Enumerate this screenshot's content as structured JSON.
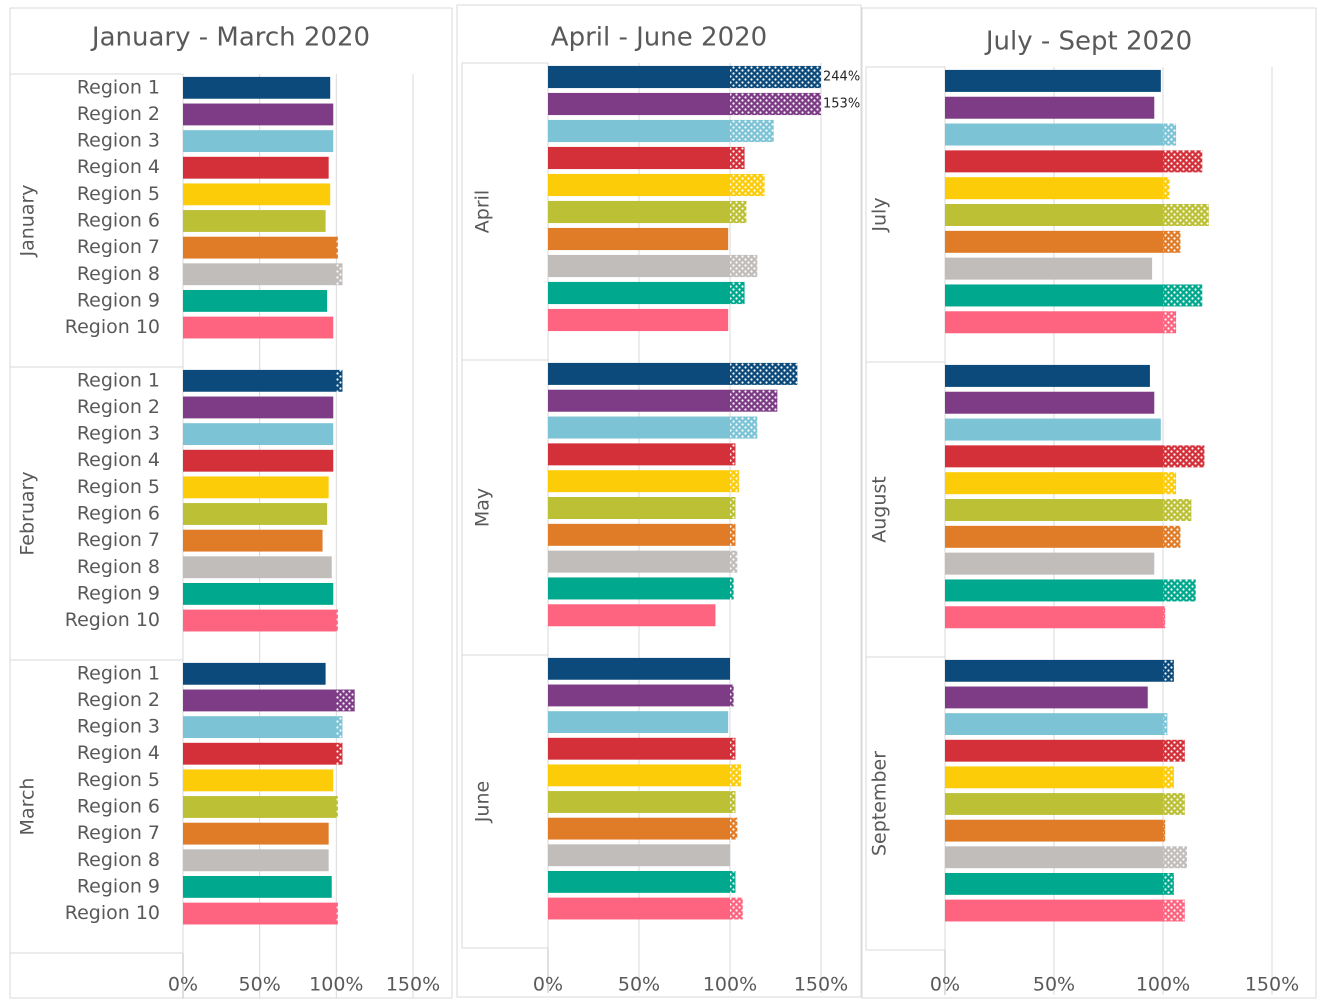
{
  "chart_data": [
    {
      "type": "bar",
      "title": "January - March 2020",
      "categories": [
        "Region 1",
        "Region 2",
        "Region 3",
        "Region 4",
        "Region 5",
        "Region 6",
        "Region 7",
        "Region 8",
        "Region 9",
        "Region 10"
      ],
      "colors": [
        "#0b4a7a",
        "#7d3c85",
        "#7cc4d5",
        "#d3303a",
        "#fdcc09",
        "#bcc034",
        "#e07b28",
        "#c0bdbb",
        "#00a88d",
        "#fe6480"
      ],
      "groups": [
        {
          "name": "January",
          "values": [
            96,
            98,
            98,
            95,
            96,
            93,
            101,
            104,
            94,
            98
          ]
        },
        {
          "name": "February",
          "values": [
            104,
            98,
            98,
            98,
            95,
            94,
            91,
            97,
            98,
            101
          ]
        },
        {
          "name": "March",
          "values": [
            93,
            112,
            104,
            104,
            98,
            101,
            95,
            95,
            97,
            101
          ]
        }
      ],
      "xlim": [
        0,
        150
      ],
      "xticks": [
        {
          "value": 0,
          "label": "0%"
        },
        {
          "value": 50,
          "label": "50%"
        },
        {
          "value": 100,
          "label": "100%"
        },
        {
          "value": 150,
          "label": "150%"
        }
      ],
      "grid": true
    },
    {
      "type": "bar",
      "title": "April - June 2020",
      "colors": [
        "#0b4a7a",
        "#7d3c85",
        "#7cc4d5",
        "#d3303a",
        "#fdcc09",
        "#bcc034",
        "#e07b28",
        "#c0bdbb",
        "#00a88d",
        "#fe6480"
      ],
      "groups": [
        {
          "name": "April",
          "values": [
            244,
            153,
            124,
            108,
            119,
            109,
            99,
            115,
            108,
            99
          ],
          "value_labels": [
            "244%",
            "153%",
            null,
            null,
            null,
            null,
            null,
            null,
            null,
            null
          ]
        },
        {
          "name": "May",
          "values": [
            137,
            126,
            115,
            103,
            105,
            103,
            103,
            104,
            102,
            92
          ]
        },
        {
          "name": "June",
          "values": [
            100,
            102,
            99,
            103,
            106,
            103,
            104,
            100,
            103,
            107
          ]
        }
      ],
      "xlim": [
        0,
        150
      ],
      "xticks": [
        {
          "value": 0,
          "label": "0%"
        },
        {
          "value": 50,
          "label": "50%"
        },
        {
          "value": 100,
          "label": "100%"
        },
        {
          "value": 150,
          "label": "150%"
        }
      ],
      "grid": true
    },
    {
      "type": "bar",
      "title": "July - Sept 2020",
      "colors": [
        "#0b4a7a",
        "#7d3c85",
        "#7cc4d5",
        "#d3303a",
        "#fdcc09",
        "#bcc034",
        "#e07b28",
        "#c0bdbb",
        "#00a88d",
        "#fe6480"
      ],
      "groups": [
        {
          "name": "July",
          "values": [
            99,
            96,
            106,
            118,
            103,
            121,
            108,
            95,
            118,
            106
          ]
        },
        {
          "name": "August",
          "values": [
            94,
            96,
            99,
            119,
            106,
            113,
            108,
            96,
            115,
            101
          ]
        },
        {
          "name": "September",
          "values": [
            105,
            93,
            102,
            110,
            105,
            110,
            101,
            111,
            105,
            110
          ]
        }
      ],
      "xlim": [
        0,
        150
      ],
      "xticks": [
        {
          "value": 0,
          "label": "0%"
        },
        {
          "value": 50,
          "label": "50%"
        },
        {
          "value": 100,
          "label": "100%"
        },
        {
          "value": 150,
          "label": "150%"
        }
      ],
      "grid": true
    }
  ]
}
